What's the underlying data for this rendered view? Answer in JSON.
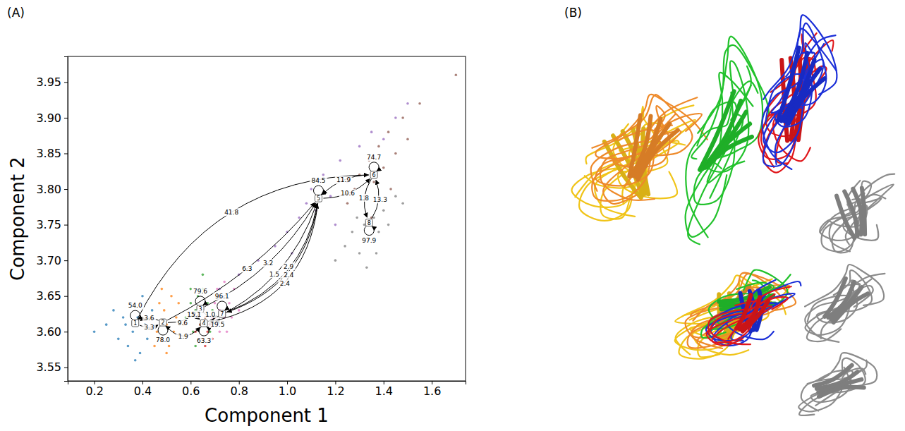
{
  "chart_data": {
    "type": "scatter",
    "panel_label": "(A)",
    "x_label": "Component 1",
    "y_label": "Component 2",
    "xlim": [
      0.09,
      1.74
    ],
    "ylim": [
      3.531,
      3.986
    ],
    "xticks": [
      0.2,
      0.4,
      0.6,
      0.8,
      {
        "value": 1,
        "label": "1.0"
      },
      1.2,
      1.4,
      1.6
    ],
    "yticks": [
      3.55,
      {
        "value": 3.6,
        "label": "3.60"
      },
      3.65,
      {
        "value": 3.7,
        "label": "3.70"
      },
      3.75,
      {
        "value": 3.8,
        "label": "3.80"
      },
      3.85,
      {
        "value": 3.9,
        "label": "3.90"
      },
      3.95
    ],
    "grid": false,
    "data_labels": true,
    "marker": "o",
    "series": [
      {
        "color": "#1f77b4",
        "x": [
          0.2,
          0.25,
          0.28,
          0.3,
          0.32,
          0.34,
          0.35,
          0.36,
          0.38,
          0.39,
          0.4,
          0.41,
          0.42,
          0.44,
          0.37,
          0.33
        ],
        "values": [
          3.6,
          3.61,
          3.63,
          3.59,
          3.62,
          3.58,
          3.64,
          3.6,
          3.62,
          3.57,
          3.65,
          3.61,
          3.59,
          3.63,
          3.56,
          3.61
        ]
      },
      {
        "color": "#ff7f0e",
        "x": [
          0.44,
          0.46,
          0.47,
          0.48,
          0.49,
          0.5,
          0.51,
          0.52,
          0.53,
          0.54,
          0.55,
          0.57,
          0.48,
          0.5,
          0.45
        ],
        "values": [
          3.62,
          3.6,
          3.64,
          3.59,
          3.63,
          3.61,
          3.58,
          3.65,
          3.6,
          3.62,
          3.64,
          3.61,
          3.66,
          3.57,
          3.58
        ]
      },
      {
        "color": "#2ca02c",
        "x": [
          0.58,
          0.6,
          0.61,
          0.62,
          0.63,
          0.64,
          0.65,
          0.66,
          0.67,
          0.68,
          0.62,
          0.65,
          0.6,
          0.69
        ],
        "values": [
          3.62,
          3.64,
          3.6,
          3.63,
          3.65,
          3.61,
          3.66,
          3.62,
          3.64,
          3.6,
          3.58,
          3.68,
          3.66,
          3.63
        ]
      },
      {
        "color": "#d62728",
        "x": [
          0.62,
          0.64,
          0.65,
          0.66,
          0.67,
          0.68,
          0.63,
          0.69,
          0.66,
          0.7
        ],
        "values": [
          3.6,
          3.61,
          3.59,
          3.62,
          3.6,
          3.61,
          3.62,
          3.59,
          3.58,
          3.62
        ]
      },
      {
        "color": "#9467bd",
        "x": [
          0.72,
          0.8,
          0.88,
          0.95,
          1.0,
          1.05,
          1.08,
          1.1,
          1.12,
          1.15,
          1.18,
          1.22,
          1.25,
          1.3,
          1.35,
          1.4,
          1.45,
          1.5,
          1.02,
          1.2
        ],
        "values": [
          3.66,
          3.68,
          3.7,
          3.72,
          3.74,
          3.76,
          3.78,
          3.8,
          3.77,
          3.82,
          3.79,
          3.84,
          3.81,
          3.86,
          3.88,
          3.87,
          3.9,
          3.92,
          3.71,
          3.75
        ]
      },
      {
        "color": "#8c564b",
        "x": [
          1.25,
          1.28,
          1.3,
          1.32,
          1.34,
          1.36,
          1.38,
          1.4,
          1.42,
          1.45,
          1.48,
          1.5,
          1.55,
          1.35,
          1.43,
          1.7
        ],
        "values": [
          3.78,
          3.8,
          3.82,
          3.79,
          3.84,
          3.81,
          3.86,
          3.83,
          3.88,
          3.85,
          3.9,
          3.87,
          3.92,
          3.76,
          3.8,
          3.96
        ]
      },
      {
        "color": "#e377c2",
        "x": [
          0.69,
          0.7,
          0.71,
          0.72,
          0.73,
          0.74,
          0.75,
          0.76,
          0.77,
          0.78,
          0.72,
          0.74,
          0.8,
          0.71
        ],
        "values": [
          3.62,
          3.64,
          3.61,
          3.63,
          3.65,
          3.62,
          3.6,
          3.64,
          3.62,
          3.66,
          3.6,
          3.67,
          3.63,
          3.66
        ]
      },
      {
        "color": "#7f7f7f",
        "x": [
          1.2,
          1.24,
          1.27,
          1.3,
          1.32,
          1.34,
          1.36,
          1.38,
          1.4,
          1.42,
          1.45,
          1.48,
          1.33,
          1.37,
          1.29
        ],
        "values": [
          3.7,
          3.72,
          3.74,
          3.71,
          3.75,
          3.73,
          3.76,
          3.74,
          3.77,
          3.75,
          3.79,
          3.78,
          3.69,
          3.71,
          3.76
        ]
      }
    ],
    "nodes": {
      "labels": [
        "1",
        "2",
        "3",
        "4",
        "5",
        "6",
        "7",
        "8"
      ],
      "x": [
        0.37,
        0.485,
        0.64,
        0.655,
        1.13,
        1.36,
        0.73,
        1.34
      ],
      "y": [
        3.612,
        3.613,
        3.632,
        3.612,
        3.787,
        3.82,
        3.625,
        3.753
      ]
    },
    "edges": {
      "source": [
        "1",
        "2",
        "1",
        "2",
        "3",
        "4",
        "7",
        "5",
        "5",
        "2",
        "2",
        "3",
        "3",
        "4",
        "5",
        "6",
        "6",
        "8",
        "1",
        "2",
        "3",
        "4",
        "5",
        "6",
        "7",
        "8"
      ],
      "target": [
        "2",
        "1",
        "6",
        "5",
        "5",
        "5",
        "5",
        "7",
        "4",
        "4",
        "3",
        "4",
        "7",
        "7",
        "6",
        "5",
        "8",
        "6",
        "1",
        "2",
        "3",
        "4",
        "5",
        "6",
        "7",
        "8"
      ],
      "values": [
        3.3,
        3.6,
        41.8,
        6.3,
        3.2,
        1.5,
        2.9,
        2.4,
        2.4,
        1.9,
        9.6,
        15.1,
        1.0,
        19.5,
        10.6,
        11.9,
        1.8,
        13.3,
        54.0,
        78.0,
        79.6,
        63.3,
        84.5,
        74.7,
        96.1,
        97.9
      ],
      "value_labels": [
        "3.3",
        "3.6",
        "41.8",
        "6.3",
        "3.2",
        "1.5",
        "2.9",
        "2.4",
        "2.4",
        "1.9",
        "9.6",
        "15.1",
        "1.0",
        "19.5",
        "10.6",
        "11.9",
        "1.8",
        "13.3",
        "54.0",
        "78.0",
        "79.6",
        "63.3",
        "84.5",
        "74.7",
        "96.1",
        "97.9"
      ]
    }
  },
  "panel_b": {
    "label": "(B)"
  }
}
